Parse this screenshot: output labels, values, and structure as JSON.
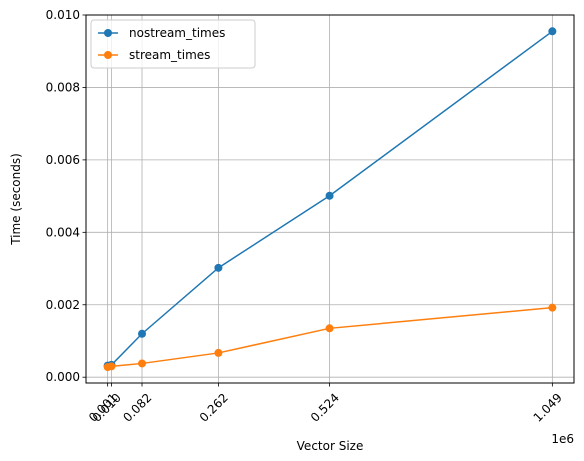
{
  "chart_data": {
    "type": "line",
    "x": [
      1000,
      10000,
      82000,
      262000,
      524000,
      1049000
    ],
    "x_tick_labels": [
      "0.001",
      "0.010",
      "0.082",
      "0.262",
      "0.524",
      "1.049"
    ],
    "xlabel": "Vector Size",
    "x_offset_label": "1e6",
    "ylabel": "Time (seconds)",
    "xlim": [
      -50000,
      1100000
    ],
    "ylim": [
      -0.00016,
      0.01
    ],
    "y_ticks": [
      0.0,
      0.002,
      0.004,
      0.006,
      0.008,
      0.01
    ],
    "y_tick_labels": [
      "0.000",
      "0.002",
      "0.004",
      "0.006",
      "0.008",
      "0.010"
    ],
    "grid": true,
    "legend_position": "top-left",
    "series": [
      {
        "name": "nostream_times",
        "color": "#1f77b4",
        "values": [
          0.00032,
          0.00034,
          0.0012,
          0.00302,
          0.00501,
          0.00955
        ]
      },
      {
        "name": "stream_times",
        "color": "#ff7f0e",
        "values": [
          0.00028,
          0.0003,
          0.00038,
          0.00067,
          0.00135,
          0.00192
        ]
      }
    ]
  }
}
